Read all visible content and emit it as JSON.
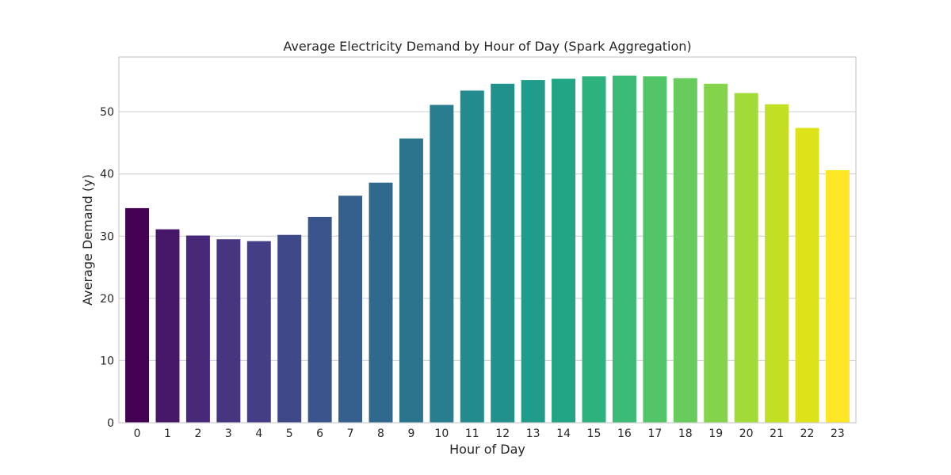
{
  "chart_data": {
    "type": "bar",
    "title": "Average Electricity Demand by Hour of Day (Spark Aggregation)",
    "xlabel": "Hour of Day",
    "ylabel": "Average Demand (y)",
    "categories": [
      "0",
      "1",
      "2",
      "3",
      "4",
      "5",
      "6",
      "7",
      "8",
      "9",
      "10",
      "11",
      "12",
      "13",
      "14",
      "15",
      "16",
      "17",
      "18",
      "19",
      "20",
      "21",
      "22",
      "23"
    ],
    "values": [
      34.5,
      31.1,
      30.1,
      29.5,
      29.2,
      30.2,
      33.1,
      36.5,
      38.6,
      45.7,
      51.1,
      53.4,
      54.5,
      55.1,
      55.3,
      55.7,
      55.8,
      55.7,
      55.4,
      54.5,
      53.0,
      51.2,
      47.4,
      40.6
    ],
    "colors": [
      "#440154",
      "#47186a",
      "#482878",
      "#473582",
      "#433e85",
      "#3e4989",
      "#3a548c",
      "#355f8d",
      "#31688e",
      "#2b748e",
      "#287d8e",
      "#238a8d",
      "#21918c",
      "#1f9d8a",
      "#21a585",
      "#2db27d",
      "#3bbb75",
      "#52c569",
      "#67cc5c",
      "#84d44b",
      "#a2da37",
      "#c2df23",
      "#dde318",
      "#fde725"
    ],
    "ylim": [
      0,
      58.8
    ],
    "yticks": [
      0,
      10,
      20,
      30,
      40,
      50
    ],
    "grid": true,
    "grid_axis": "y",
    "legend": "none"
  }
}
